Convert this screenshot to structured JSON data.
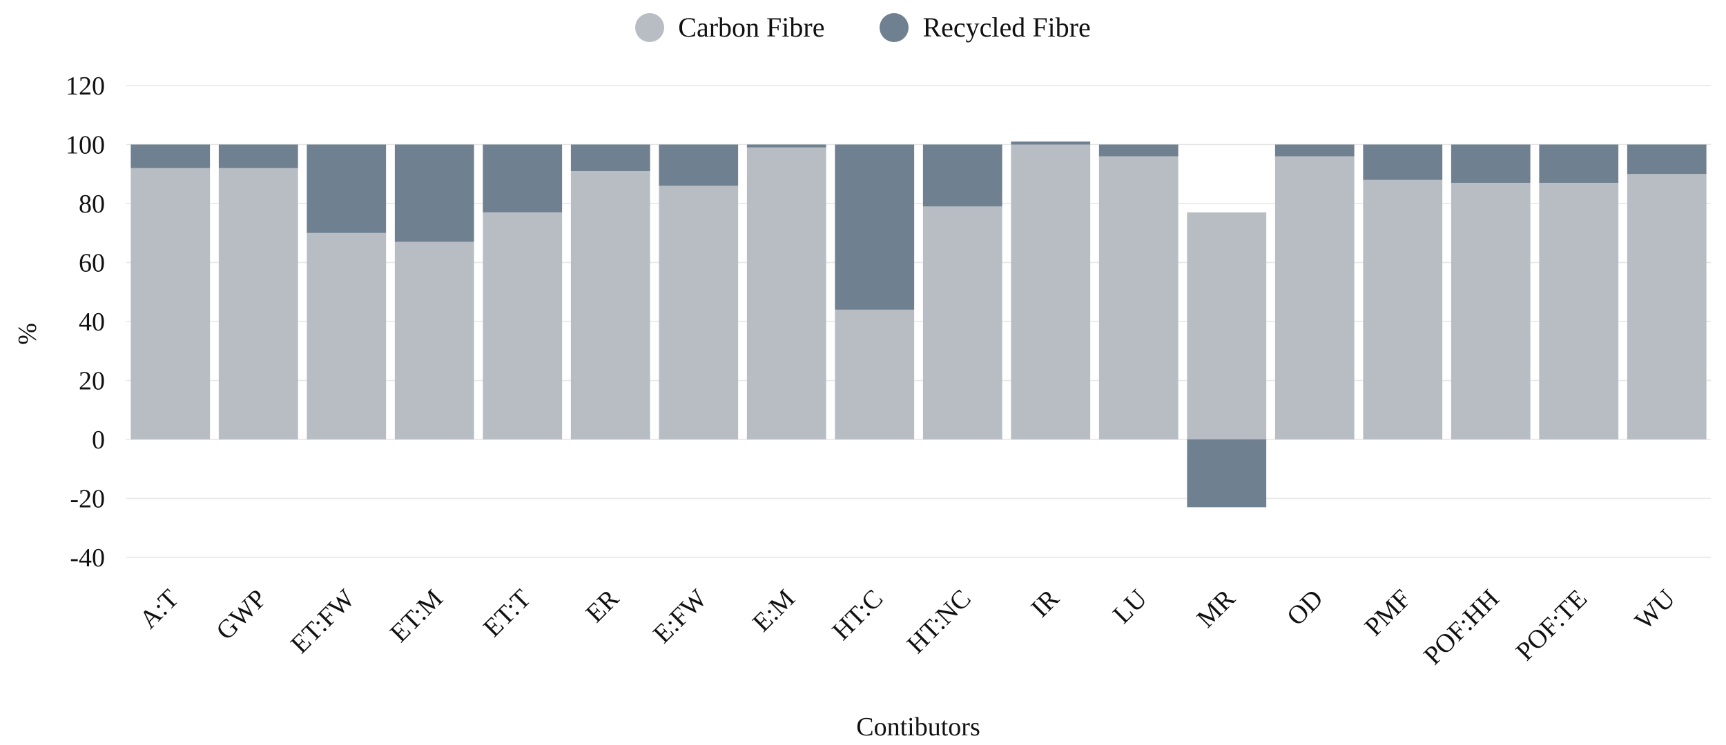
{
  "chart_data": {
    "type": "bar",
    "stacked": true,
    "categories": [
      "A:T",
      "GWP",
      "ET:FW",
      "ET:M",
      "ET:T",
      "ER",
      "E:FW",
      "E:M",
      "HT:C",
      "HT:NC",
      "IR",
      "LU",
      "MR",
      "OD",
      "PMF",
      "POF:HH",
      "POF:TE",
      "WU"
    ],
    "series": [
      {
        "name": "Carbon Fibre",
        "color": "#b8bdc4",
        "values": [
          92,
          92,
          70,
          67,
          77,
          91,
          86,
          99,
          44,
          79,
          100,
          96,
          77,
          96,
          88,
          87,
          87,
          90
        ]
      },
      {
        "name": "Recycled Fibre",
        "color": "#6f8090",
        "values": [
          8,
          8,
          30,
          33,
          23,
          9,
          14,
          1,
          56,
          21,
          1,
          4,
          -23,
          4,
          12,
          13,
          13,
          10
        ]
      }
    ],
    "xlabel": "Contibutors",
    "ylabel": "%",
    "ylim": [
      -40,
      120
    ],
    "yticks": [
      -40,
      -20,
      0,
      20,
      40,
      60,
      80,
      100,
      120
    ],
    "grid": true,
    "legend_position": "top-center"
  }
}
